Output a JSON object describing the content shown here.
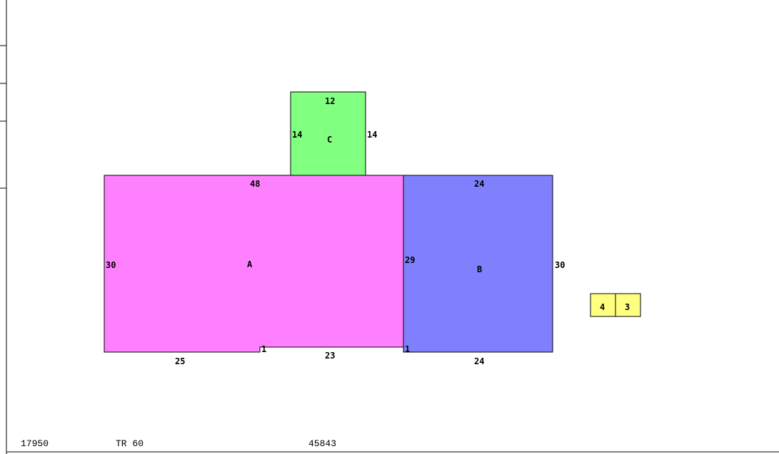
{
  "sketch": {
    "areas": [
      {
        "label": "A",
        "color": "#ff80ff",
        "dims": {
          "top": "48",
          "left": "30",
          "bottom_left": "25",
          "bottom_right": "23",
          "step_left": "1",
          "step_right": "1"
        }
      },
      {
        "label": "B",
        "color": "#8080ff",
        "dims": {
          "top": "24",
          "left": "29",
          "right": "30",
          "bottom": "24"
        }
      },
      {
        "label": "C",
        "color": "#80ff80",
        "dims": {
          "top": "12",
          "left": "14",
          "right": "14"
        }
      }
    ],
    "small_boxes": {
      "color": "#ffff80",
      "left": "4",
      "right": "3"
    }
  },
  "footer": {
    "code1": "17950",
    "code2": "TR 60",
    "code3": "45843"
  }
}
